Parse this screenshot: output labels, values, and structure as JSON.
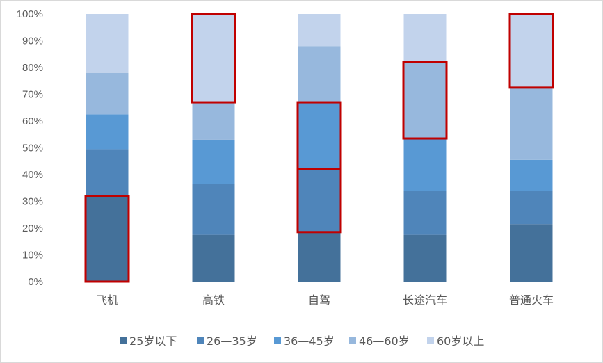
{
  "chart_data": {
    "type": "bar",
    "stacked": true,
    "percent": true,
    "categories": [
      "飞机",
      "高铁",
      "自驾",
      "长途汽车",
      "普通火车"
    ],
    "series": [
      {
        "name": "25岁以下",
        "color": "#44719a",
        "values": [
          32,
          17.5,
          18.5,
          17.5,
          21.5
        ]
      },
      {
        "name": "26—35岁",
        "color": "#4f85ba",
        "values": [
          17.5,
          19,
          23.5,
          16.5,
          12.5
        ]
      },
      {
        "name": "36—45岁",
        "color": "#5899d4",
        "values": [
          13,
          16.5,
          25,
          19.5,
          11.5
        ]
      },
      {
        "name": "46—60岁",
        "color": "#97b8dd",
        "values": [
          15.5,
          14,
          21,
          28.5,
          27
        ]
      },
      {
        "name": "60岁以上",
        "color": "#c2d3ec",
        "values": [
          22,
          33,
          12,
          18,
          27.5
        ]
      }
    ],
    "yticks": [
      "0%",
      "10%",
      "20%",
      "30%",
      "40%",
      "50%",
      "60%",
      "70%",
      "80%",
      "90%",
      "100%"
    ],
    "ylim": [
      0,
      100
    ],
    "grid": false,
    "legend_position": "bottom",
    "highlights": [
      {
        "category": "飞机",
        "from": 0,
        "to": 32
      },
      {
        "category": "高铁",
        "from": 67,
        "to": 100
      },
      {
        "category": "自驾",
        "from": 42,
        "to": 67
      },
      {
        "category": "自驾",
        "from": 18.5,
        "to": 42
      },
      {
        "category": "长途汽车",
        "from": 53.5,
        "to": 82
      },
      {
        "category": "普通火车",
        "from": 72.5,
        "to": 100
      }
    ],
    "highlight_color": "#c00000"
  }
}
